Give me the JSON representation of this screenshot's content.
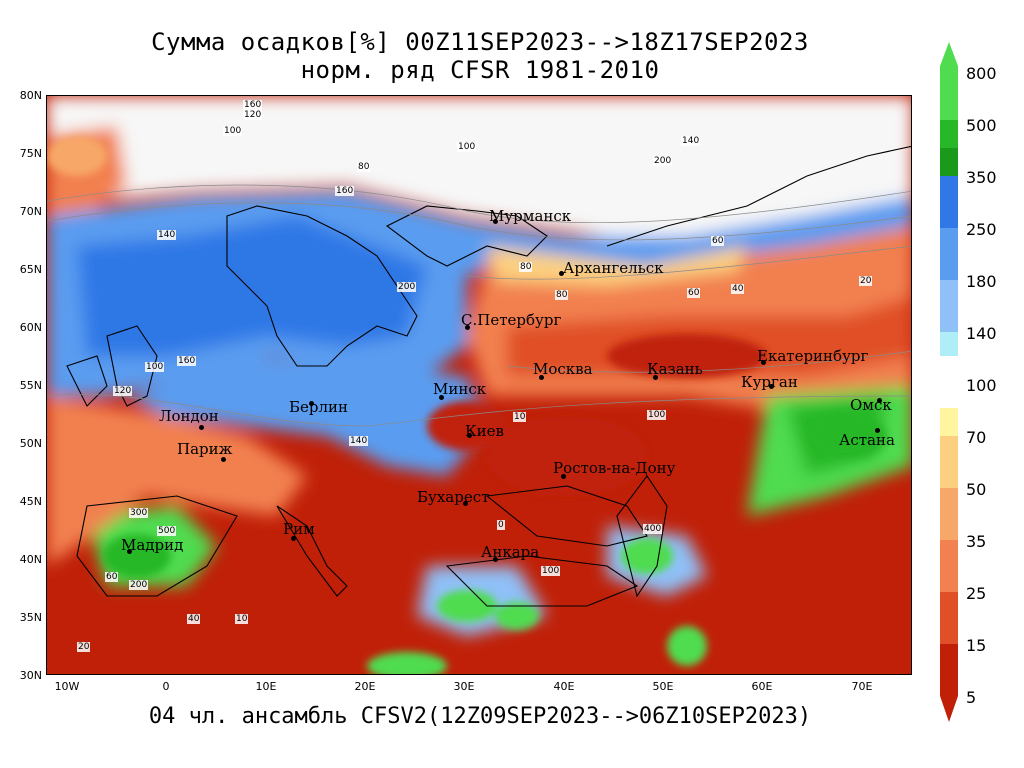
{
  "title": {
    "line1": "Сумма осадков[%] 00Z11SEP2023-->18Z17SEP2023",
    "line2": "норм. ряд CFSR 1981-2010"
  },
  "footer": "04 чл. ансамбль CFSV2(12Z09SEP2023-->06Z10SEP2023)",
  "axes": {
    "lat_ticks": [
      "80N",
      "75N",
      "70N",
      "65N",
      "60N",
      "55N",
      "50N",
      "45N",
      "40N",
      "35N",
      "30N"
    ],
    "lon_ticks": [
      "10W",
      "0",
      "10E",
      "20E",
      "30E",
      "40E",
      "50E",
      "60E",
      "70E"
    ]
  },
  "colorbar": {
    "labels": [
      "800",
      "500",
      "350",
      "250",
      "180",
      "140",
      "100",
      "70",
      "50",
      "35",
      "25",
      "15",
      "5"
    ],
    "colors": {
      "c800": "#4fdc4f",
      "c500": "#26b826",
      "c350": "#1a9a1a",
      "c250": "#2f78e6",
      "c180": "#5a9cf0",
      "c140": "#8fc0f7",
      "c100": "#b0eef7",
      "gap": "#ffffff",
      "c70": "#fff5a0",
      "c50": "#fcd080",
      "c35": "#f7a868",
      "c25": "#f28050",
      "c15": "#e05028",
      "c5": "#c02008"
    }
  },
  "cities": [
    {
      "name": "Мурманск"
    },
    {
      "name": "Архангельск"
    },
    {
      "name": "С.Петербург"
    },
    {
      "name": "Москва"
    },
    {
      "name": "Казань"
    },
    {
      "name": "Екатеринбург"
    },
    {
      "name": "Курган"
    },
    {
      "name": "Омск"
    },
    {
      "name": "Астана"
    },
    {
      "name": "Минск"
    },
    {
      "name": "Берлин"
    },
    {
      "name": "Лондон"
    },
    {
      "name": "Париж"
    },
    {
      "name": "Киев"
    },
    {
      "name": "Ростов-на-Дону"
    },
    {
      "name": "Бухарест"
    },
    {
      "name": "Рим"
    },
    {
      "name": "Мадрид"
    },
    {
      "name": "Анкара"
    }
  ],
  "contour_labels": [
    "160",
    "120",
    "100",
    "80",
    "100",
    "140",
    "200",
    "160",
    "140",
    "80",
    "60",
    "100",
    "160",
    "120",
    "200",
    "140",
    "100",
    "80",
    "60",
    "40",
    "20",
    "10",
    "0",
    "300",
    "500",
    "200",
    "100",
    "60",
    "40",
    "20",
    "10",
    "400"
  ]
}
